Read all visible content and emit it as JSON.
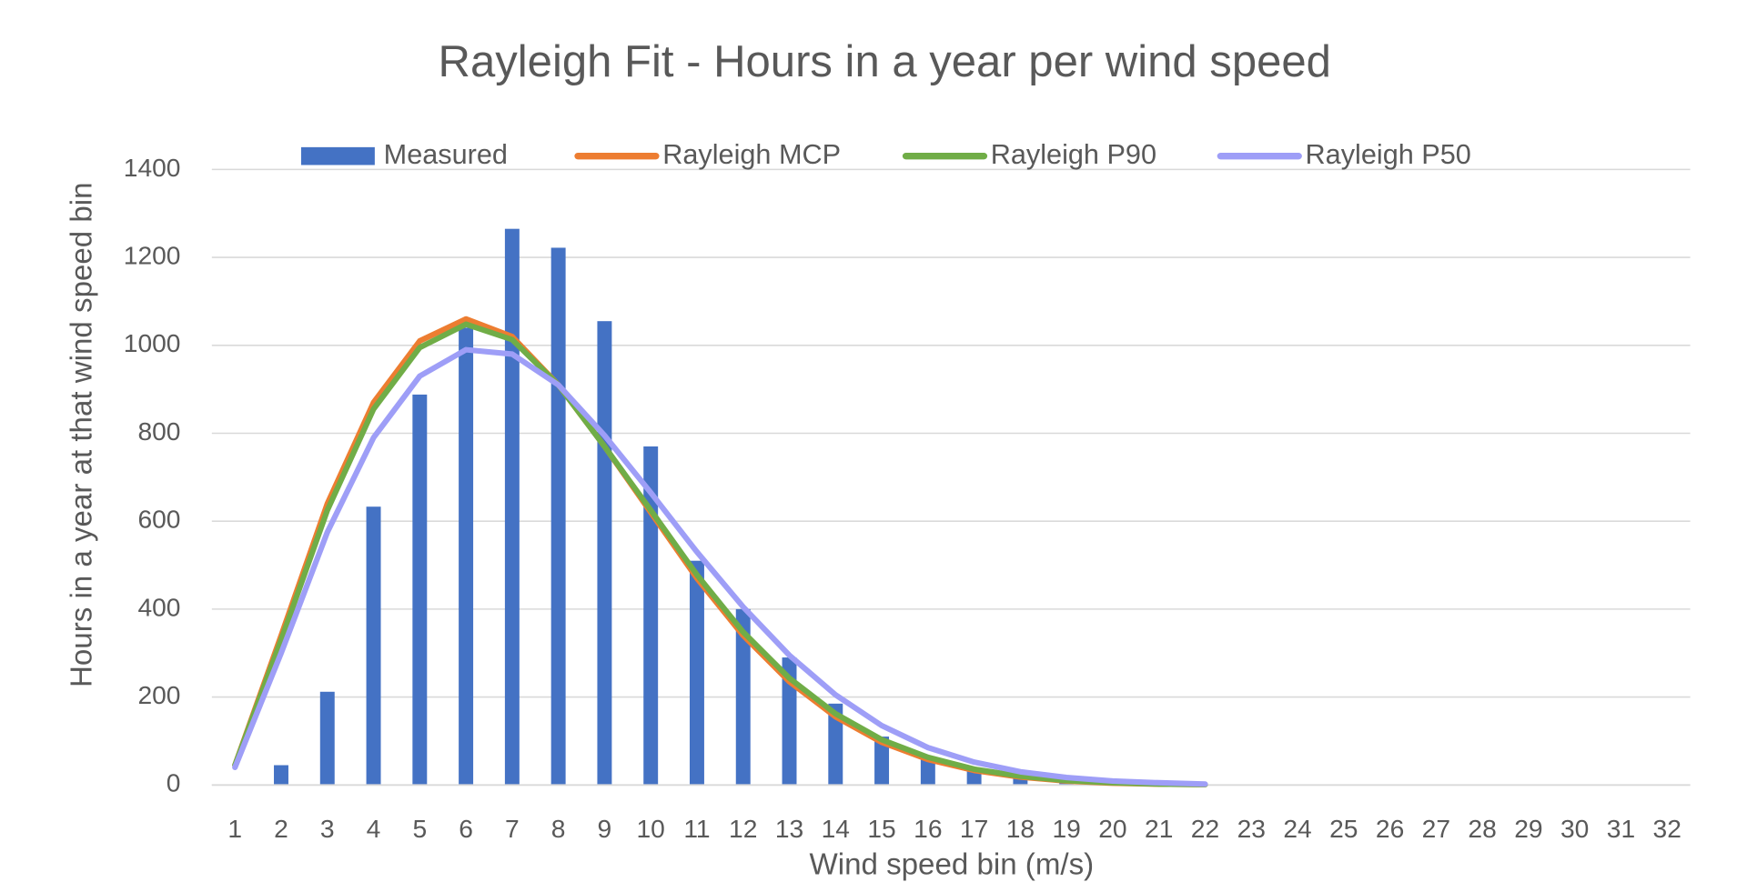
{
  "chart_data": {
    "type": "bar_line",
    "title": "Rayleigh Fit - Hours in a year per wind speed",
    "x_label": "Wind speed bin (m/s)",
    "y_label": "Hours in a year at that wind speed bin",
    "categories": [
      "1",
      "2",
      "3",
      "4",
      "5",
      "6",
      "7",
      "8",
      "9",
      "10",
      "11",
      "12",
      "13",
      "14",
      "15",
      "16",
      "17",
      "18",
      "19",
      "20",
      "21",
      "22",
      "23",
      "24",
      "25",
      "26",
      "27",
      "28",
      "29",
      "30",
      "31",
      "32"
    ],
    "ylim": [
      0,
      1400
    ],
    "yticks": [
      0,
      200,
      400,
      600,
      800,
      1000,
      1200,
      1400
    ],
    "grid": true,
    "legend": "top",
    "series": [
      {
        "name": "Measured",
        "kind": "bar",
        "color": "#4472c4",
        "values": [
          0,
          45,
          212,
          633,
          888,
          1040,
          1265,
          1222,
          1055,
          770,
          510,
          400,
          290,
          185,
          110,
          65,
          35,
          15,
          5,
          2,
          0,
          0,
          0,
          0,
          0,
          0,
          0,
          0,
          0,
          0,
          0,
          0
        ]
      },
      {
        "name": "Rayleigh MCP",
        "kind": "line",
        "color": "#ed7d31",
        "values": [
          45,
          340,
          640,
          870,
          1010,
          1060,
          1020,
          910,
          770,
          620,
          470,
          340,
          235,
          155,
          97,
          58,
          33,
          18,
          9,
          4,
          2,
          1,
          null,
          null,
          null,
          null,
          null,
          null,
          null,
          null,
          null,
          null
        ]
      },
      {
        "name": "Rayleigh P90",
        "kind": "line",
        "color": "#70ad47",
        "values": [
          45,
          330,
          625,
          855,
          995,
          1048,
          1013,
          910,
          770,
          625,
          478,
          348,
          243,
          162,
          103,
          63,
          36,
          20,
          10,
          5,
          2,
          1,
          null,
          null,
          null,
          null,
          null,
          null,
          null,
          null,
          null,
          null
        ]
      },
      {
        "name": "Rayleigh P50",
        "kind": "line",
        "color": "#9e9ef7",
        "values": [
          40,
          300,
          575,
          790,
          930,
          990,
          980,
          910,
          795,
          665,
          530,
          405,
          295,
          205,
          135,
          85,
          52,
          30,
          17,
          9,
          5,
          2,
          null,
          null,
          null,
          null,
          null,
          null,
          null,
          null,
          null,
          null
        ]
      }
    ]
  }
}
